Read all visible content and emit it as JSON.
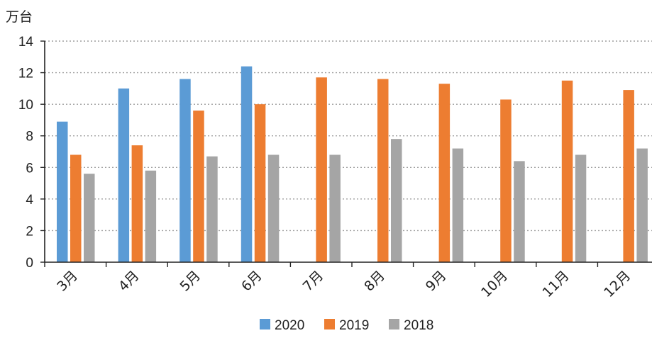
{
  "chart_data": {
    "type": "bar",
    "unit_label": "万台",
    "categories": [
      "3月",
      "4月",
      "5月",
      "6月",
      "7月",
      "8月",
      "9月",
      "10月",
      "11月",
      "12月"
    ],
    "series": [
      {
        "name": "2020",
        "color": "#5B9BD5",
        "values": [
          8.9,
          11.0,
          11.6,
          12.4,
          null,
          null,
          null,
          null,
          null,
          null
        ]
      },
      {
        "name": "2019",
        "color": "#ED7D31",
        "values": [
          6.8,
          7.4,
          9.6,
          10.0,
          11.7,
          11.6,
          11.3,
          10.3,
          11.5,
          10.9
        ]
      },
      {
        "name": "2018",
        "color": "#A5A5A5",
        "values": [
          5.6,
          5.8,
          6.7,
          6.8,
          6.8,
          7.8,
          7.2,
          6.4,
          6.8,
          7.2
        ]
      }
    ],
    "ylim": [
      0,
      14
    ],
    "yticks": [
      0,
      2,
      4,
      6,
      8,
      10,
      12,
      14
    ],
    "grid": true,
    "legend_position": "bottom"
  }
}
